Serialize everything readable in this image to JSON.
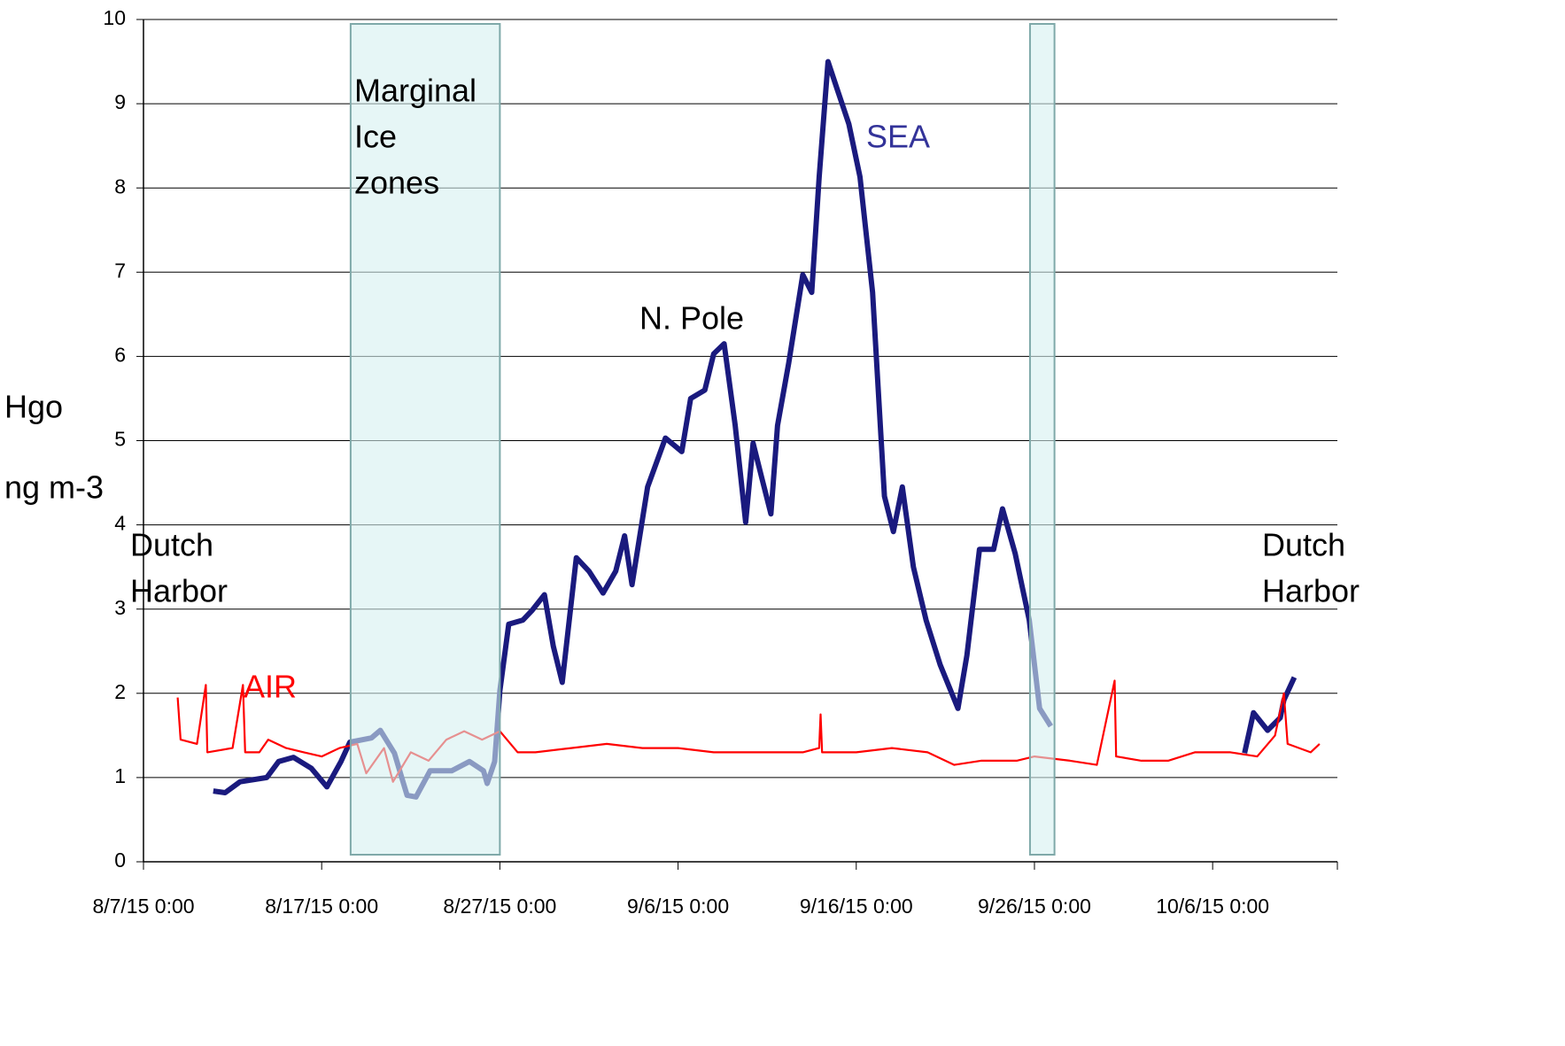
{
  "chart_data": {
    "type": "line",
    "y_label": [
      "Hgo",
      "ng m-3"
    ],
    "xlim": [
      "2015-08-07T00:00",
      "2015-10-13T00:00"
    ],
    "xticks": [
      {
        "value": "2015-08-07T00:00",
        "label": "8/7/15 0:00"
      },
      {
        "value": "2015-08-17T00:00",
        "label": "8/17/15 0:00"
      },
      {
        "value": "2015-08-27T00:00",
        "label": "8/27/15 0:00"
      },
      {
        "value": "2015-09-06T00:00",
        "label": "9/6/15 0:00"
      },
      {
        "value": "2015-09-16T00:00",
        "label": "9/16/15 0:00"
      },
      {
        "value": "2015-09-26T00:00",
        "label": "9/26/15 0:00"
      },
      {
        "value": "2015-10-06T00:00",
        "label": "10/6/15 0:00"
      }
    ],
    "ylim": [
      0,
      10
    ],
    "yticks": [
      0,
      1,
      2,
      3,
      4,
      5,
      6,
      7,
      8,
      9,
      10
    ],
    "grid": true,
    "bands": [
      {
        "x0": "2015-08-18T15:00",
        "x1": "2015-08-27T00:00"
      },
      {
        "x0": "2015-09-25T18:00",
        "x1": "2015-09-27T03:00"
      }
    ],
    "band_color": "#d6f0f0",
    "series": [
      {
        "name": "SEA",
        "color": "#1a1a7e",
        "x": [
          "2015-08-10T22:00",
          "2015-08-11T14:00",
          "2015-08-12T10:00",
          "2015-08-13T22:00",
          "2015-08-14T14:00",
          "2015-08-15T10:00",
          "2015-08-16T10:00",
          "2015-08-17T07:00",
          "2015-08-18T02:00",
          "2015-08-18T14:00",
          "2015-08-19T19:00",
          "2015-08-20T07:00",
          "2015-08-21T02:00",
          "2015-08-21T19:00",
          "2015-08-22T07:00",
          "2015-08-23T02:00",
          "2015-08-24T07:00",
          "2015-08-25T07:00",
          "2015-08-26T02:00",
          "2015-08-26T07:00",
          "2015-08-26T17:00",
          "2015-08-27T00:00",
          "2015-08-27T12:00",
          "2015-08-28T07:00",
          "2015-08-28T19:00",
          "2015-08-29T12:00",
          "2015-08-30T00:00",
          "2015-08-30T12:00",
          "2015-08-31T07:00",
          "2015-09-01T00:00",
          "2015-09-01T19:00",
          "2015-09-02T12:00",
          "2015-09-03T00:00",
          "2015-09-03T10:00",
          "2015-09-04T07:00",
          "2015-09-05T07:00",
          "2015-09-06T05:00",
          "2015-09-06T17:00",
          "2015-09-07T12:00",
          "2015-09-08T00:00",
          "2015-09-08T14:00",
          "2015-09-09T05:00",
          "2015-09-09T19:00",
          "2015-09-10T05:00",
          "2015-09-10T17:00",
          "2015-09-11T05:00",
          "2015-09-11T14:00",
          "2015-09-12T05:00",
          "2015-09-13T00:00",
          "2015-09-13T12:00",
          "2015-09-13T22:00",
          "2015-09-14T10:00",
          "2015-09-14T22:00",
          "2015-09-15T14:00",
          "2015-09-16T05:00",
          "2015-09-16T22:00",
          "2015-09-17T14:00",
          "2015-09-18T02:00",
          "2015-09-18T14:00",
          "2015-09-19T05:00",
          "2015-09-19T22:00",
          "2015-09-20T17:00",
          "2015-09-21T17:00",
          "2015-09-22T05:00",
          "2015-09-22T22:00",
          "2015-09-23T17:00",
          "2015-09-24T05:00",
          "2015-09-24T22:00",
          "2015-09-25T17:00",
          "2015-09-26T07:00",
          "2015-09-26T22:00",
          "2015-10-01T00:00",
          "2015-10-07T19:00",
          "2015-10-08T07:00",
          "2015-10-09T02:00",
          "2015-10-09T19:00",
          "2015-10-10T00:00",
          "2015-10-10T14:00"
        ],
        "values": [
          0.84,
          0.82,
          0.95,
          1.0,
          1.19,
          1.24,
          1.11,
          0.89,
          1.19,
          1.42,
          1.47,
          1.56,
          1.29,
          0.79,
          0.77,
          1.08,
          1.08,
          1.19,
          1.08,
          0.93,
          1.19,
          2.03,
          2.82,
          2.87,
          2.98,
          3.17,
          2.56,
          2.13,
          3.61,
          3.45,
          3.19,
          3.45,
          3.87,
          3.29,
          4.45,
          5.03,
          4.87,
          5.5,
          5.6,
          6.03,
          6.15,
          5.18,
          4.03,
          4.97,
          4.55,
          4.13,
          5.18,
          5.92,
          6.97,
          6.76,
          8.13,
          9.5,
          9.18,
          8.76,
          8.13,
          6.76,
          4.34,
          3.92,
          4.45,
          3.5,
          2.87,
          2.34,
          1.82,
          2.45,
          3.71,
          3.71,
          4.19,
          3.66,
          2.87,
          1.82,
          1.61,
          null,
          1.29,
          1.77,
          1.56,
          1.71,
          1.92,
          2.19
        ]
      },
      {
        "name": "AIR",
        "color": "#ff0000",
        "x": [
          "2015-08-08T22:00",
          "2015-08-09T02:00",
          "2015-08-10T00:00",
          "2015-08-10T12:00",
          "2015-08-10T14:00",
          "2015-08-12T00:00",
          "2015-08-12T14:00",
          "2015-08-12T17:00",
          "2015-08-13T12:00",
          "2015-08-14T00:00",
          "2015-08-15T00:00",
          "2015-08-16T00:00",
          "2015-08-17T00:00",
          "2015-08-18T00:00",
          "2015-08-19T00:00",
          "2015-08-19T12:00",
          "2015-08-20T12:00",
          "2015-08-21T00:00",
          "2015-08-22T00:00",
          "2015-08-23T00:00",
          "2015-08-24T00:00",
          "2015-08-25T00:00",
          "2015-08-26T00:00",
          "2015-08-27T00:00",
          "2015-08-28T00:00",
          "2015-08-29T00:00",
          "2015-08-31T00:00",
          "2015-09-02T00:00",
          "2015-09-04T00:00",
          "2015-09-06T00:00",
          "2015-09-08T00:00",
          "2015-09-10T00:00",
          "2015-09-13T00:00",
          "2015-09-13T22:00",
          "2015-09-14T00:00",
          "2015-09-14T02:00",
          "2015-09-16T00:00",
          "2015-09-18T00:00",
          "2015-09-20T00:00",
          "2015-09-21T12:00",
          "2015-09-23T00:00",
          "2015-09-25T00:00",
          "2015-09-26T00:00",
          "2015-09-28T00:00",
          "2015-09-29T12:00",
          "2015-09-30T12:00",
          "2015-09-30T14:00",
          "2015-10-02T00:00",
          "2015-10-03T12:00",
          "2015-10-05T00:00",
          "2015-10-07T00:00",
          "2015-10-08T12:00",
          "2015-10-09T12:00",
          "2015-10-10T00:00",
          "2015-10-10T05:00",
          "2015-10-11T12:00",
          "2015-10-12T00:00"
        ],
        "values": [
          1.95,
          1.45,
          1.4,
          2.1,
          1.3,
          1.35,
          2.1,
          1.3,
          1.3,
          1.45,
          1.35,
          1.3,
          1.25,
          1.35,
          1.4,
          1.05,
          1.35,
          0.95,
          1.3,
          1.2,
          1.45,
          1.55,
          1.45,
          1.55,
          1.3,
          1.3,
          1.35,
          1.4,
          1.35,
          1.35,
          1.3,
          1.3,
          1.3,
          1.35,
          1.75,
          1.3,
          1.3,
          1.35,
          1.3,
          1.15,
          1.2,
          1.2,
          1.25,
          1.2,
          1.15,
          2.15,
          1.25,
          1.2,
          1.2,
          1.3,
          1.3,
          1.25,
          1.5,
          2.0,
          1.4,
          1.3,
          1.4
        ]
      }
    ],
    "annotations": [
      {
        "text": [
          "Marginal",
          "Ice",
          "zones"
        ]
      },
      {
        "text": [
          "N. Pole"
        ]
      },
      {
        "text": [
          "SEA"
        ],
        "color": "#333399"
      },
      {
        "text": [
          "AIR"
        ],
        "color": "#ff0000"
      },
      {
        "text": [
          "Dutch",
          "Harbor"
        ]
      },
      {
        "text": [
          "Dutch",
          "Harbor"
        ]
      }
    ]
  }
}
